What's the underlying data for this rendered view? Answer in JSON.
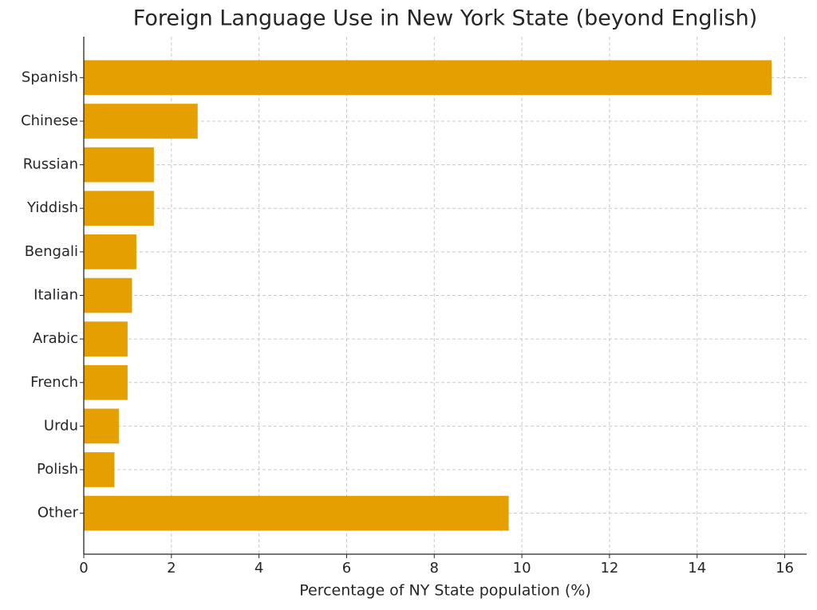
{
  "chart_data": {
    "type": "barh",
    "title": "Foreign Language Use in New York State (beyond English)",
    "xlabel": "Percentage of NY State population (%)",
    "categories": [
      "Spanish",
      "Chinese",
      "Russian",
      "Yiddish",
      "Bengali",
      "Italian",
      "Arabic",
      "French",
      "Urdu",
      "Polish",
      "Other"
    ],
    "values": [
      15.7,
      2.6,
      1.6,
      1.6,
      1.2,
      1.1,
      1.0,
      1.0,
      0.8,
      0.7,
      9.7
    ],
    "color": "#e69f00",
    "xlim": [
      0,
      16.5
    ],
    "xticks": [
      0,
      2,
      4,
      6,
      8,
      10,
      12,
      14,
      16
    ],
    "grid": true
  }
}
